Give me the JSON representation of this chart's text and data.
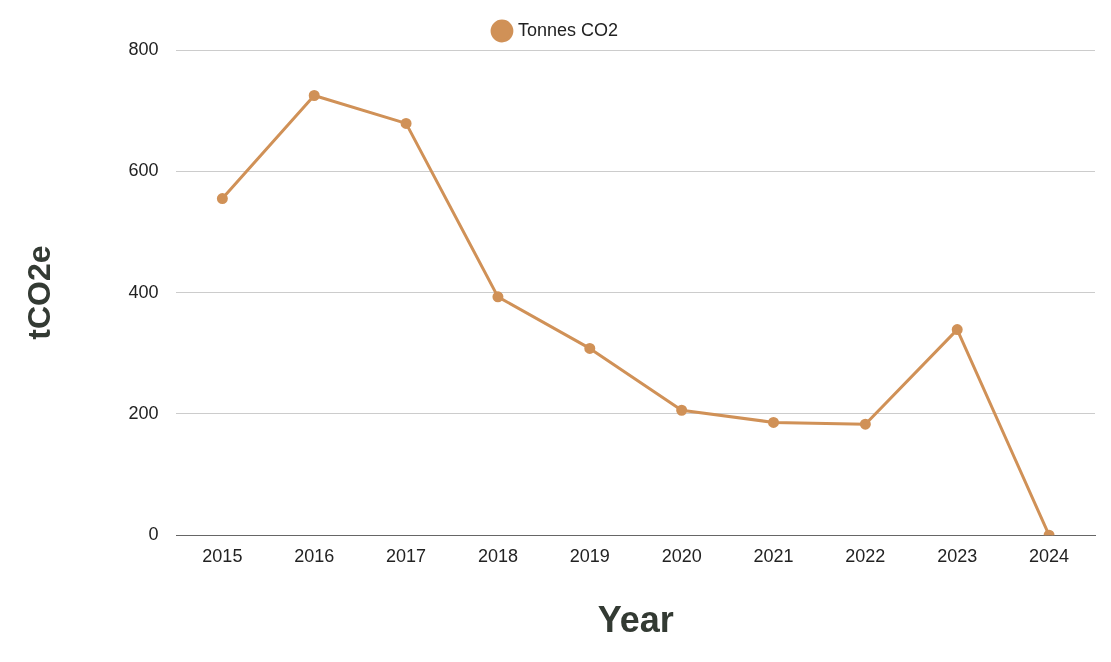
{
  "chart_data": {
    "type": "line",
    "categories": [
      "2015",
      "2016",
      "2017",
      "2018",
      "2019",
      "2020",
      "2021",
      "2022",
      "2023",
      "2024"
    ],
    "series": [
      {
        "name": "Tonnes CO2",
        "color": "#d09157",
        "values": [
          555,
          725,
          679,
          393,
          308,
          206,
          186,
          183,
          339,
          0
        ]
      }
    ],
    "xlabel": "Year",
    "ylabel": "tCO2e",
    "ylim": [
      0,
      800
    ],
    "yticks": [
      0,
      200,
      400,
      600,
      800
    ],
    "grid": "y",
    "legend": "top",
    "marker": "circle",
    "line_style": "solid"
  }
}
